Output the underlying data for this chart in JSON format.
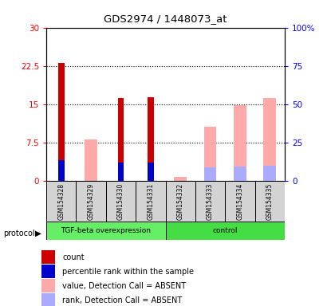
{
  "title": "GDS2974 / 1448073_at",
  "samples": [
    "GSM154328",
    "GSM154329",
    "GSM154330",
    "GSM154331",
    "GSM154332",
    "GSM154333",
    "GSM154334",
    "GSM154335"
  ],
  "red_bars": [
    23.0,
    0.0,
    16.2,
    16.4,
    0.0,
    0.0,
    0.0,
    0.0
  ],
  "blue_bars": [
    13.5,
    0.0,
    12.0,
    12.0,
    0.0,
    0.0,
    0.0,
    0.0
  ],
  "pink_bars": [
    0.0,
    8.0,
    0.0,
    0.0,
    0.7,
    10.5,
    14.8,
    16.2
  ],
  "lightblue_bars": [
    0.0,
    0.0,
    0.0,
    0.0,
    0.0,
    8.5,
    9.0,
    9.5
  ],
  "ylim_left": [
    0,
    30
  ],
  "ylim_right": [
    0,
    100
  ],
  "yticks_left": [
    0,
    7.5,
    15,
    22.5,
    30
  ],
  "yticks_right": [
    0,
    25,
    50,
    75,
    100
  ],
  "ytick_labels_left": [
    "0",
    "7.5",
    "15",
    "22.5",
    "30"
  ],
  "ytick_labels_right": [
    "0",
    "25",
    "50",
    "75",
    "100%"
  ],
  "legend_items": [
    {
      "label": "count",
      "color": "#cc0000"
    },
    {
      "label": "percentile rank within the sample",
      "color": "#0000cc"
    },
    {
      "label": "value, Detection Call = ABSENT",
      "color": "#ffaaaa"
    },
    {
      "label": "rank, Detection Call = ABSENT",
      "color": "#aaaaff"
    }
  ]
}
